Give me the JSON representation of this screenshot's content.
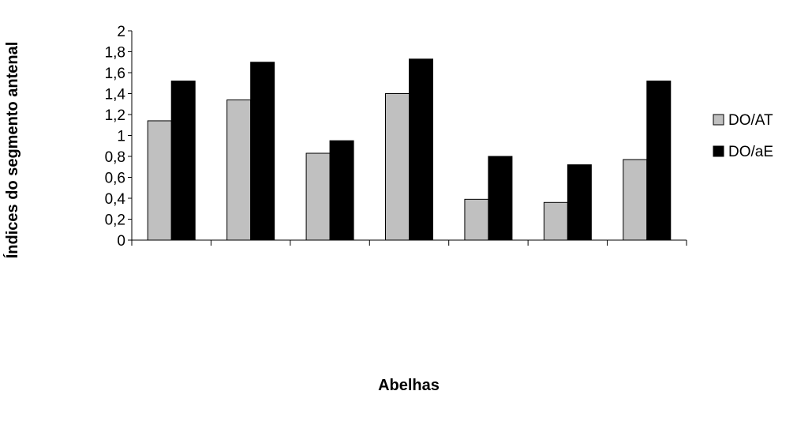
{
  "chart_data": {
    "type": "bar",
    "title": "",
    "xlabel": "Abelhas",
    "ylabel": "Índices do segmento antenal",
    "categories": [
      "",
      "",
      "",
      "",
      "",
      "",
      ""
    ],
    "series": [
      {
        "name": "DO/AT",
        "color": "#c0c0c0",
        "values": [
          1.14,
          1.34,
          0.83,
          1.4,
          0.39,
          0.36,
          0.77
        ]
      },
      {
        "name": "DO/aE",
        "color": "#000000",
        "values": [
          1.52,
          1.7,
          0.95,
          1.73,
          0.8,
          0.72,
          1.52
        ]
      }
    ],
    "ylim": [
      0,
      2
    ],
    "yticks": [
      "0",
      "0,2",
      "0,4",
      "0,6",
      "0,8",
      "1",
      "1,2",
      "1,4",
      "1,6",
      "1,8",
      "2"
    ],
    "grid": false,
    "legend_position": "right"
  }
}
